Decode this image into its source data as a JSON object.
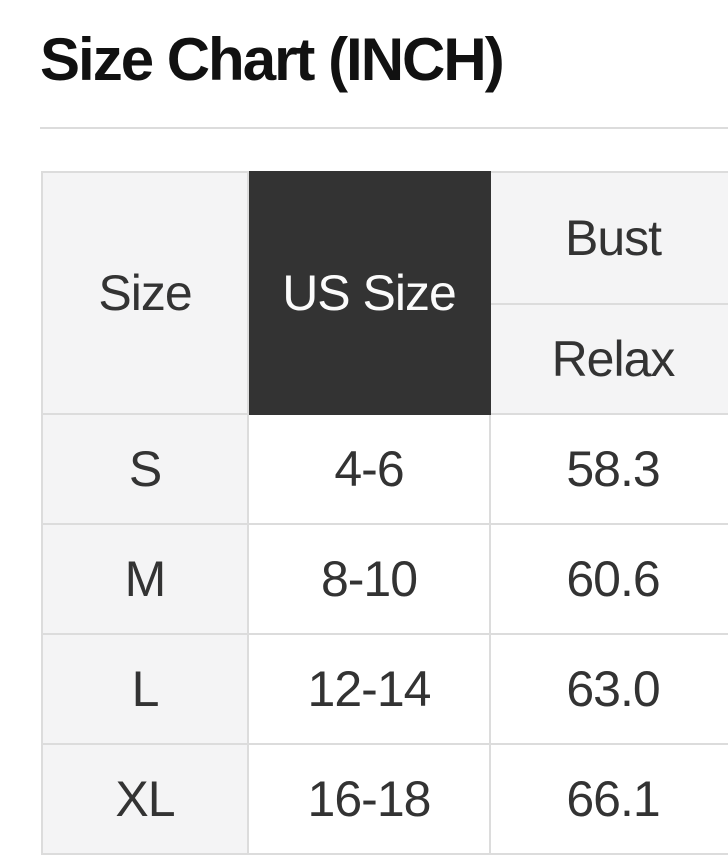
{
  "page": {
    "title": "Size Chart (INCH)"
  },
  "colors": {
    "title_text": "#111111",
    "cell_text": "#333333",
    "dark_header_bg": "#333333",
    "dark_header_text": "#fbfbfb",
    "light_header_bg": "#f4f4f5",
    "row_cell_bg": "#ffffff",
    "border": "#dcdcdc"
  },
  "table": {
    "header": {
      "size": "Size",
      "us_size": "US Size",
      "bust": "Bust",
      "relax": "Relax"
    },
    "rows": [
      {
        "size": "S",
        "us_size": "4-6",
        "bust_relax": "58.3"
      },
      {
        "size": "M",
        "us_size": "8-10",
        "bust_relax": "60.6"
      },
      {
        "size": "L",
        "us_size": "12-14",
        "bust_relax": "63.0"
      },
      {
        "size": "XL",
        "us_size": "16-18",
        "bust_relax": "66.1"
      }
    ]
  }
}
